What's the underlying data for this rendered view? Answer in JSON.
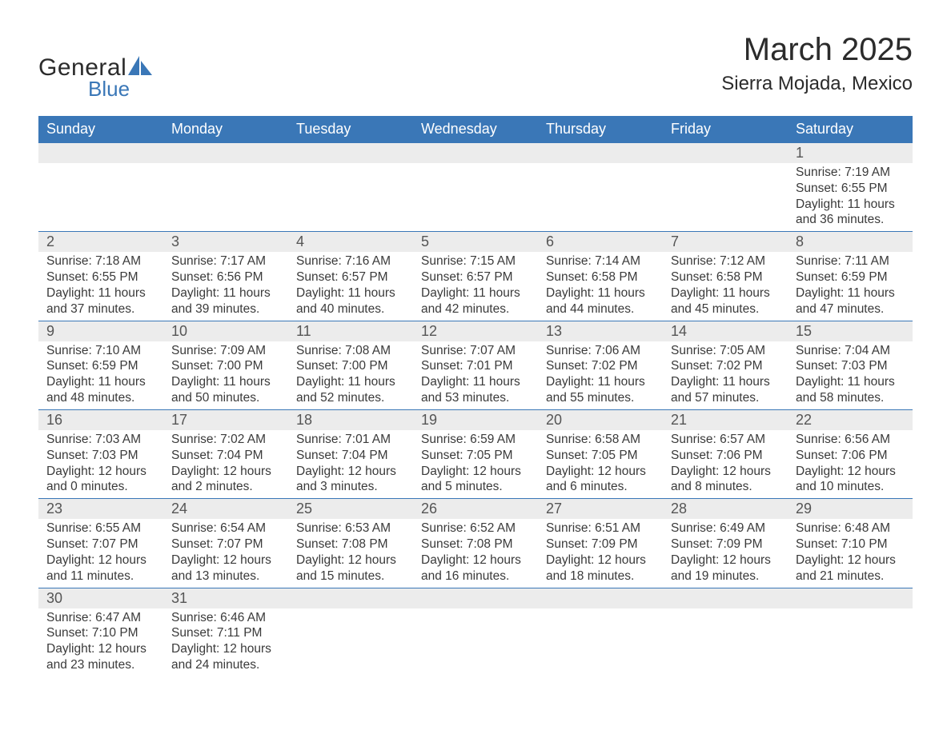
{
  "brand": {
    "word1": "General",
    "word2": "Blue",
    "shape_color": "#3a77b7"
  },
  "title": "March 2025",
  "location": "Sierra Mojada, Mexico",
  "colors": {
    "header_bg": "#3a77b7",
    "header_text": "#ffffff",
    "daynum_bg": "#ececec",
    "row_divider": "#3a77b7",
    "text": "#3a3a3a"
  },
  "weekdays": [
    "Sunday",
    "Monday",
    "Tuesday",
    "Wednesday",
    "Thursday",
    "Friday",
    "Saturday"
  ],
  "weeks": [
    [
      null,
      null,
      null,
      null,
      null,
      null,
      {
        "n": "1",
        "sunrise": "7:19 AM",
        "sunset": "6:55 PM",
        "day_h": 11,
        "day_m": 36
      }
    ],
    [
      {
        "n": "2",
        "sunrise": "7:18 AM",
        "sunset": "6:55 PM",
        "day_h": 11,
        "day_m": 37
      },
      {
        "n": "3",
        "sunrise": "7:17 AM",
        "sunset": "6:56 PM",
        "day_h": 11,
        "day_m": 39
      },
      {
        "n": "4",
        "sunrise": "7:16 AM",
        "sunset": "6:57 PM",
        "day_h": 11,
        "day_m": 40
      },
      {
        "n": "5",
        "sunrise": "7:15 AM",
        "sunset": "6:57 PM",
        "day_h": 11,
        "day_m": 42
      },
      {
        "n": "6",
        "sunrise": "7:14 AM",
        "sunset": "6:58 PM",
        "day_h": 11,
        "day_m": 44
      },
      {
        "n": "7",
        "sunrise": "7:12 AM",
        "sunset": "6:58 PM",
        "day_h": 11,
        "day_m": 45
      },
      {
        "n": "8",
        "sunrise": "7:11 AM",
        "sunset": "6:59 PM",
        "day_h": 11,
        "day_m": 47
      }
    ],
    [
      {
        "n": "9",
        "sunrise": "7:10 AM",
        "sunset": "6:59 PM",
        "day_h": 11,
        "day_m": 48
      },
      {
        "n": "10",
        "sunrise": "7:09 AM",
        "sunset": "7:00 PM",
        "day_h": 11,
        "day_m": 50
      },
      {
        "n": "11",
        "sunrise": "7:08 AM",
        "sunset": "7:00 PM",
        "day_h": 11,
        "day_m": 52
      },
      {
        "n": "12",
        "sunrise": "7:07 AM",
        "sunset": "7:01 PM",
        "day_h": 11,
        "day_m": 53
      },
      {
        "n": "13",
        "sunrise": "7:06 AM",
        "sunset": "7:02 PM",
        "day_h": 11,
        "day_m": 55
      },
      {
        "n": "14",
        "sunrise": "7:05 AM",
        "sunset": "7:02 PM",
        "day_h": 11,
        "day_m": 57
      },
      {
        "n": "15",
        "sunrise": "7:04 AM",
        "sunset": "7:03 PM",
        "day_h": 11,
        "day_m": 58
      }
    ],
    [
      {
        "n": "16",
        "sunrise": "7:03 AM",
        "sunset": "7:03 PM",
        "day_h": 12,
        "day_m": 0
      },
      {
        "n": "17",
        "sunrise": "7:02 AM",
        "sunset": "7:04 PM",
        "day_h": 12,
        "day_m": 2
      },
      {
        "n": "18",
        "sunrise": "7:01 AM",
        "sunset": "7:04 PM",
        "day_h": 12,
        "day_m": 3
      },
      {
        "n": "19",
        "sunrise": "6:59 AM",
        "sunset": "7:05 PM",
        "day_h": 12,
        "day_m": 5
      },
      {
        "n": "20",
        "sunrise": "6:58 AM",
        "sunset": "7:05 PM",
        "day_h": 12,
        "day_m": 6
      },
      {
        "n": "21",
        "sunrise": "6:57 AM",
        "sunset": "7:06 PM",
        "day_h": 12,
        "day_m": 8
      },
      {
        "n": "22",
        "sunrise": "6:56 AM",
        "sunset": "7:06 PM",
        "day_h": 12,
        "day_m": 10
      }
    ],
    [
      {
        "n": "23",
        "sunrise": "6:55 AM",
        "sunset": "7:07 PM",
        "day_h": 12,
        "day_m": 11
      },
      {
        "n": "24",
        "sunrise": "6:54 AM",
        "sunset": "7:07 PM",
        "day_h": 12,
        "day_m": 13
      },
      {
        "n": "25",
        "sunrise": "6:53 AM",
        "sunset": "7:08 PM",
        "day_h": 12,
        "day_m": 15
      },
      {
        "n": "26",
        "sunrise": "6:52 AM",
        "sunset": "7:08 PM",
        "day_h": 12,
        "day_m": 16
      },
      {
        "n": "27",
        "sunrise": "6:51 AM",
        "sunset": "7:09 PM",
        "day_h": 12,
        "day_m": 18
      },
      {
        "n": "28",
        "sunrise": "6:49 AM",
        "sunset": "7:09 PM",
        "day_h": 12,
        "day_m": 19
      },
      {
        "n": "29",
        "sunrise": "6:48 AM",
        "sunset": "7:10 PM",
        "day_h": 12,
        "day_m": 21
      }
    ],
    [
      {
        "n": "30",
        "sunrise": "6:47 AM",
        "sunset": "7:10 PM",
        "day_h": 12,
        "day_m": 23
      },
      {
        "n": "31",
        "sunrise": "6:46 AM",
        "sunset": "7:11 PM",
        "day_h": 12,
        "day_m": 24
      },
      null,
      null,
      null,
      null,
      null
    ]
  ],
  "labels": {
    "sunrise": "Sunrise:",
    "sunset": "Sunset:",
    "daylight": "Daylight:",
    "hours": "hours",
    "and": "and",
    "minutes": "minutes."
  }
}
